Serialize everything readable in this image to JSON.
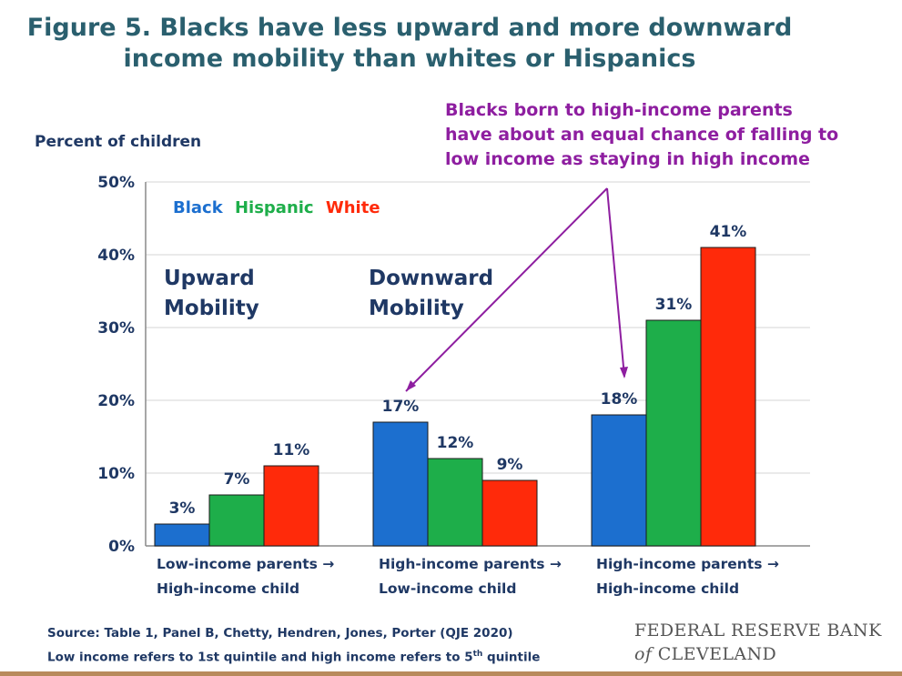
{
  "title": {
    "line1": "Figure 5. Blacks have less upward and more downward",
    "line2": "income mobility than whites or Hispanics"
  },
  "annotation": {
    "line1": "Blacks born to high-income parents",
    "line2": "have about an equal chance of falling to",
    "line3": "low income as staying in high income",
    "color": "#8e1ea0"
  },
  "group_labels": {
    "upward_line1": "Upward",
    "upward_line2": "Mobility",
    "downward_line1": "Downward",
    "downward_line2": "Mobility"
  },
  "footer": {
    "source_line1": "Source: Table 1, Panel B, Chetty, Hendren, Jones, Porter (QJE 2020)",
    "source_line2_pre": "Low income refers to 1st quintile and high income refers to 5",
    "source_line2_sup": "th",
    "source_line2_post": " quintile",
    "logo_line1": "FEDERAL RESERVE BANK",
    "logo_line2_italic": "of",
    "logo_line2_rest": " CLEVELAND"
  },
  "chart_data": {
    "type": "bar",
    "ylabel": "Percent of children",
    "ylim": [
      0,
      50
    ],
    "yticks": [
      0,
      10,
      20,
      30,
      40,
      50
    ],
    "ytick_labels": [
      "0%",
      "10%",
      "20%",
      "30%",
      "40%",
      "50%"
    ],
    "grid": true,
    "legend_position": "top-left",
    "categories": [
      [
        "Low-income parents →",
        "High-income child"
      ],
      [
        "High-income parents →",
        "Low-income child"
      ],
      [
        "High-income parents →",
        "High-income child"
      ]
    ],
    "series": [
      {
        "name": "Black",
        "color": "#1c6fcf",
        "values": [
          3,
          17,
          18
        ],
        "labels": [
          "3%",
          "17%",
          "18%"
        ]
      },
      {
        "name": "Hispanic",
        "color": "#1eae4a",
        "values": [
          7,
          12,
          31
        ],
        "labels": [
          "7%",
          "12%",
          "31%"
        ]
      },
      {
        "name": "White",
        "color": "#ff2a0a",
        "values": [
          11,
          9,
          41
        ],
        "labels": [
          "11%",
          "9%",
          "41%"
        ]
      }
    ]
  }
}
